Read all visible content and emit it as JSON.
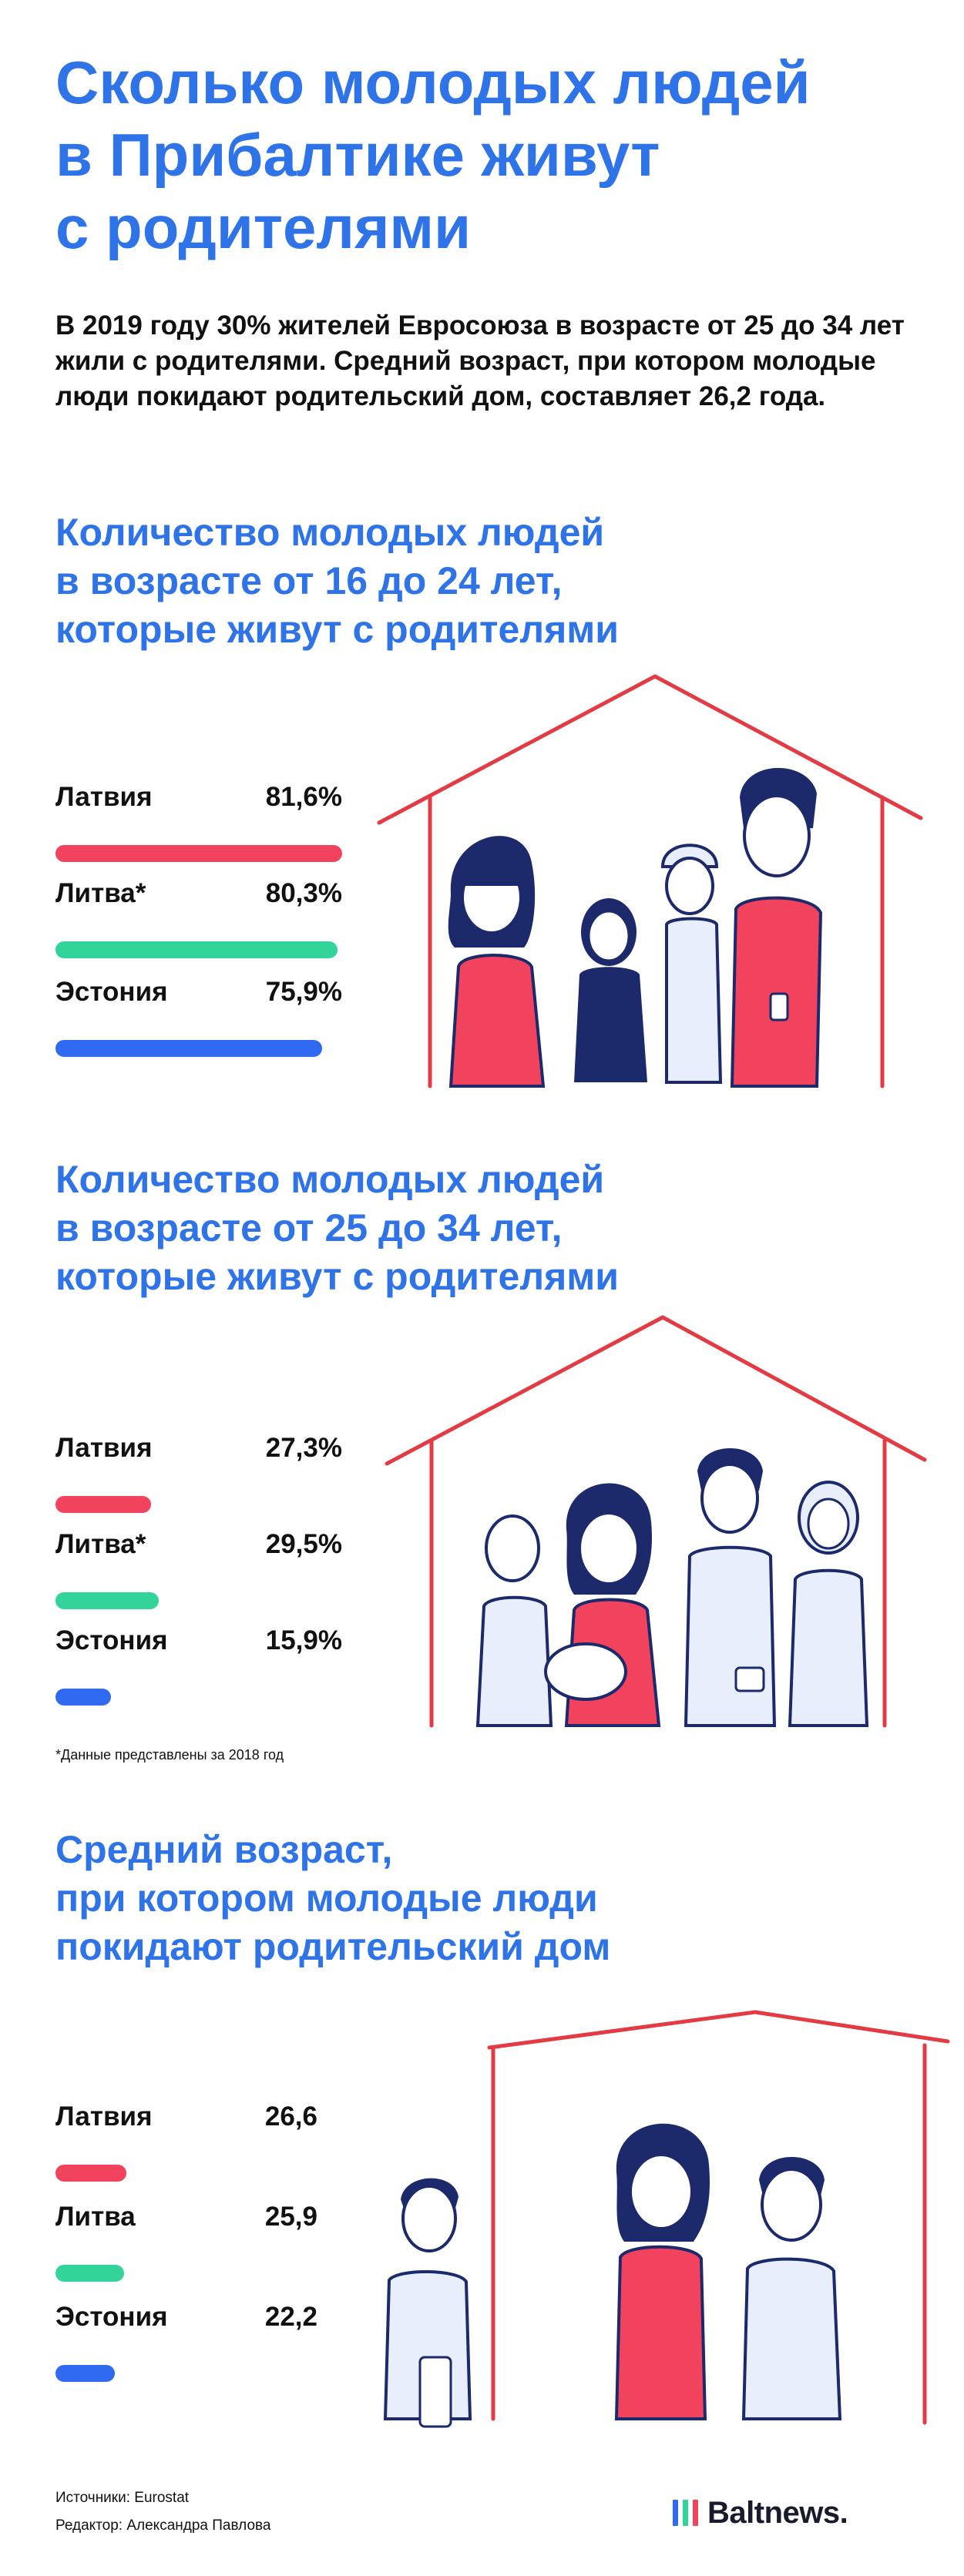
{
  "title_lines": [
    "Сколько молодых людей",
    "в Прибалтике живут",
    "с родителями"
  ],
  "intro": "В 2019 году 30% жителей Евросоюза в возрасте от 25 до 34 лет жили с родителями. Средний возраст, при котором молодые люди покидают родительский дом, составляет 26,2 года.",
  "colors": {
    "accent": "#2f73e8",
    "latvia": "#f2435e",
    "lithuania": "#33d49a",
    "estonia": "#2f6af0",
    "house": "#e33a44",
    "ink": "#1c2a6b"
  },
  "chart_data": [
    {
      "type": "bar",
      "title_lines": [
        "Количество молодых людей",
        "в возрасте от 16 до 24 лет,",
        "которые живут с родителями"
      ],
      "categories": [
        "Латвия",
        "Литва*",
        "Эстония"
      ],
      "values": [
        81.6,
        80.3,
        75.9
      ],
      "value_labels": [
        "81,6%",
        "80,3%",
        "75,9%"
      ],
      "unit": "%"
    },
    {
      "type": "bar",
      "title_lines": [
        "Количество молодых людей",
        "в возрасте от 25 до 34 лет,",
        "которые живут с родителями"
      ],
      "categories": [
        "Латвия",
        "Литва*",
        "Эстония"
      ],
      "values": [
        27.3,
        29.5,
        15.9
      ],
      "value_labels": [
        "27,3%",
        "29,5%",
        "15,9%"
      ],
      "unit": "%"
    },
    {
      "type": "bar",
      "title_lines": [
        "Средний возраст,",
        "при котором молодые люди",
        "покидают родительский дом"
      ],
      "categories": [
        "Латвия",
        "Литва",
        "Эстония"
      ],
      "values": [
        26.6,
        25.9,
        22.2
      ],
      "value_labels": [
        "26,6",
        "25,9",
        "22,2"
      ],
      "unit": ""
    }
  ],
  "footnote": "*Данные представлены за 2018 год",
  "sources": "Источники: Eurostat",
  "editor": "Редактор: Александра Павлова",
  "brand": {
    "name": "Baltnews.",
    "logo_icon": "three-bars-logo-icon",
    "mark_colors": [
      "#2f6af0",
      "#33d49a",
      "#f2435e"
    ]
  }
}
